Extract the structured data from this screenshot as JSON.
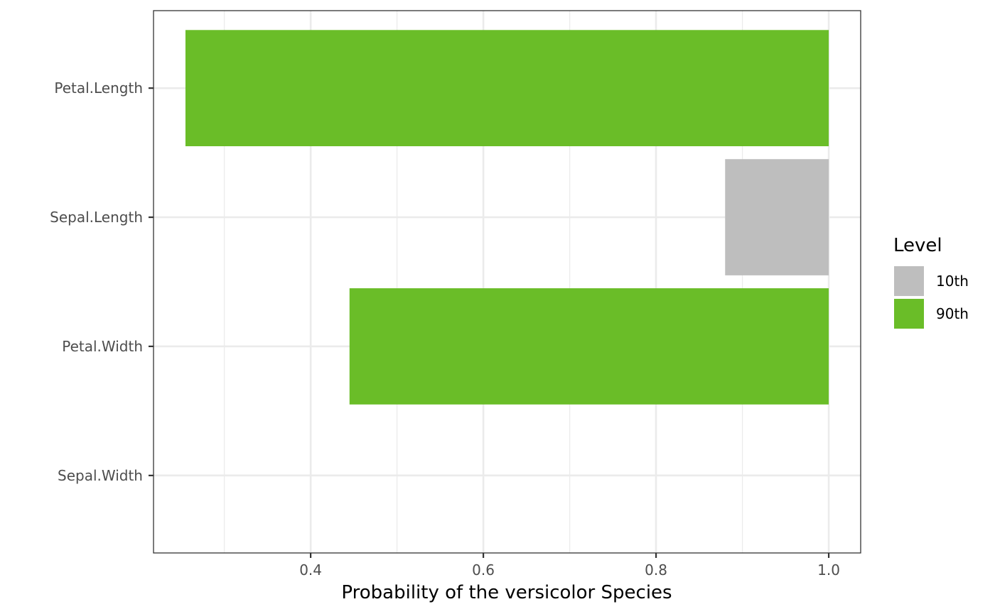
{
  "chart_data": {
    "type": "bar",
    "orientation": "horizontal",
    "categories": [
      "Petal.Length",
      "Sepal.Length",
      "Petal.Width",
      "Sepal.Width"
    ],
    "bars": [
      {
        "category": "Petal.Length",
        "level": "90th",
        "start": 0.255,
        "end": 1.0
      },
      {
        "category": "Sepal.Length",
        "level": "10th",
        "start": 0.88,
        "end": 1.0
      },
      {
        "category": "Petal.Width",
        "level": "90th",
        "start": 0.445,
        "end": 1.0
      }
    ],
    "xlabel": "Probability of the versicolor Species",
    "ylabel": "",
    "xlim": [
      0.218,
      1.037
    ],
    "x_ticks": [
      0.4,
      0.6,
      0.8,
      1.0
    ],
    "x_tick_labels": [
      "0.4",
      "0.6",
      "0.8",
      "1.0"
    ],
    "grid": true,
    "legend": {
      "title": "Level",
      "position": "right",
      "entries": [
        {
          "label": "10th",
          "color": "#bebebe"
        },
        {
          "label": "90th",
          "color": "#6abd28"
        }
      ]
    }
  }
}
